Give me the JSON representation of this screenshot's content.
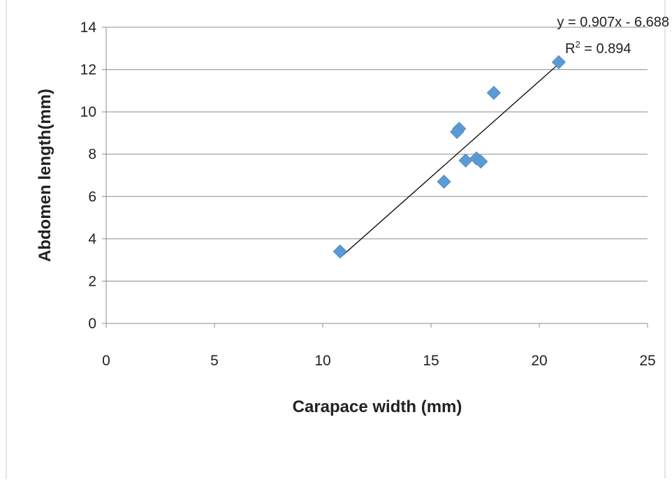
{
  "chart_data": {
    "type": "scatter",
    "title": "",
    "xlabel": "Carapace width (mm)",
    "ylabel": "Abdomen length(mm)",
    "xlim": [
      0,
      25
    ],
    "ylim": [
      0,
      14
    ],
    "xticks": [
      "0",
      "5",
      "10",
      "15",
      "20",
      "25"
    ],
    "yticks": [
      "0",
      "2",
      "4",
      "6",
      "8",
      "10",
      "12",
      "14"
    ],
    "grid": "horizontal",
    "marker_color": "#5B9BD5",
    "series": [
      {
        "marker": "diamond",
        "points": [
          {
            "x": 10.8,
            "y": 3.4
          },
          {
            "x": 15.6,
            "y": 6.7
          },
          {
            "x": 16.3,
            "y": 9.2
          },
          {
            "x": 16.2,
            "y": 9.05
          },
          {
            "x": 16.6,
            "y": 7.7
          },
          {
            "x": 17.1,
            "y": 7.8
          },
          {
            "x": 17.3,
            "y": 7.65
          },
          {
            "x": 17.9,
            "y": 10.9
          },
          {
            "x": 20.9,
            "y": 12.35
          }
        ]
      }
    ],
    "trendline": {
      "slope": 0.907,
      "intercept": -6.688,
      "x_range": [
        10.8,
        20.9
      ],
      "equation": "y = 0.907x - 6.688",
      "r2_prefix": "R",
      "r2_sup": "2",
      "r2_value": " = 0.894"
    }
  }
}
